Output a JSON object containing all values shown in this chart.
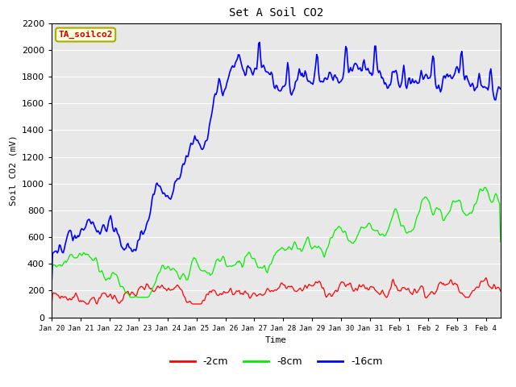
{
  "title": "Set A Soil CO2",
  "ylabel": "Soil CO2 (mV)",
  "xlabel": "Time",
  "tag_label": "TA_soilco2",
  "tag_bg": "#ffffdd",
  "tag_border": "#aaaa00",
  "tag_text_color": "#cc0000",
  "xlim_days": [
    0,
    15.5
  ],
  "ylim": [
    0,
    2200
  ],
  "yticks": [
    0,
    200,
    400,
    600,
    800,
    1000,
    1200,
    1400,
    1600,
    1800,
    2000,
    2200
  ],
  "xtick_labels": [
    "Jan 20",
    "Jan 21",
    "Jan 22",
    "Jan 23",
    "Jan 24",
    "Jan 25",
    "Jan 26",
    "Jan 27",
    "Jan 28",
    "Jan 29",
    "Jan 30",
    "Jan 31",
    "Feb 1",
    "Feb 2",
    "Feb 3",
    "Feb 4"
  ],
  "xtick_positions": [
    0,
    1,
    2,
    3,
    4,
    5,
    6,
    7,
    8,
    9,
    10,
    11,
    12,
    13,
    14,
    15
  ],
  "colors": {
    "2cm": "#ff0000",
    "8cm": "#00ee00",
    "16cm": "#0000ff"
  },
  "legend_labels": [
    "-2cm",
    "-8cm",
    "-16cm"
  ],
  "bg_plot": "#e8e8e8",
  "bg_fig": "#ffffff",
  "grid_color": "#ffffff",
  "font_family": "monospace"
}
